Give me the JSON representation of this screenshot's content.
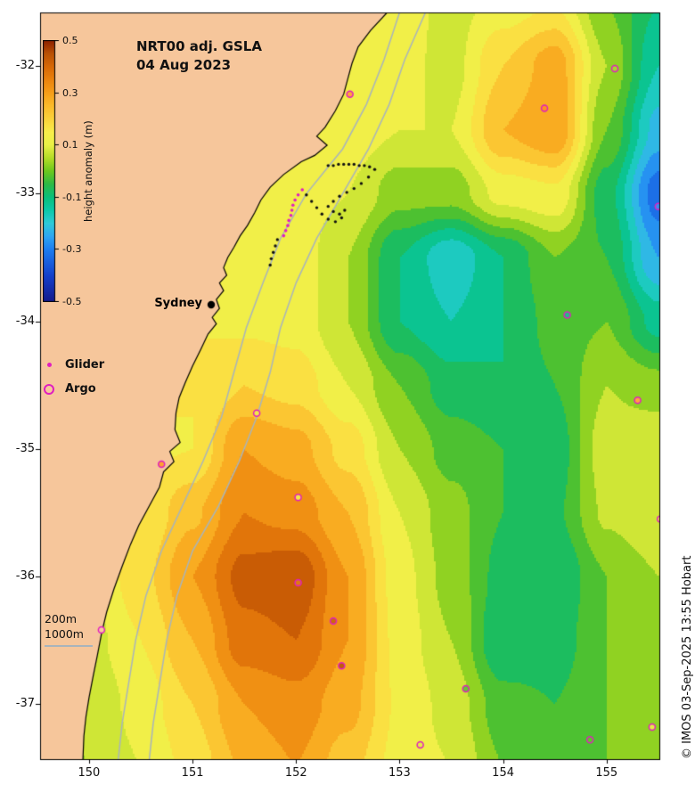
{
  "figure": {
    "title_line1": "NRT00 adj. GSLA",
    "title_line2": "04 Aug 2023",
    "copyright": "© IMOS 03-Sep-2025 13:55 Hobart",
    "land_color": "#f6c69b",
    "coast_color": "#000000",
    "bathy_color": "#a8b4bc",
    "background": "#ffffff"
  },
  "colorbar": {
    "label": "height anomaly (m)",
    "ticks": [
      "0.5",
      "0.3",
      "0.1",
      "-0.1",
      "-0.3",
      "-0.5"
    ],
    "tick_values": [
      0.5,
      0.3,
      0.1,
      -0.1,
      -0.3,
      -0.5
    ],
    "min": -0.5,
    "max": 0.5
  },
  "axes": {
    "lon_tick_labels": [
      "150",
      "151",
      "152",
      "153",
      "154",
      "155"
    ],
    "lon_tick_values": [
      150,
      151,
      152,
      153,
      154,
      155
    ],
    "lat_tick_labels": [
      "-32",
      "-33",
      "-34",
      "-35",
      "-36",
      "-37"
    ],
    "lat_tick_values": [
      -32,
      -33,
      -34,
      -35,
      -36,
      -37
    ],
    "lon_range": [
      149.527,
      155.51
    ],
    "lat_range": [
      -37.432,
      -31.58
    ]
  },
  "legend": {
    "glider_label": "Glider",
    "argo_label": "Argo",
    "marker_color": "#e01ec0"
  },
  "depth_legend": {
    "labels": [
      "200m",
      "1000m"
    ]
  },
  "city": {
    "name": "Sydney",
    "lon": 151.18,
    "lat": -33.87
  },
  "chart_data": {
    "type": "heatmap",
    "title": "NRT00 adj. GSLA 04 Aug 2023",
    "units": "m",
    "value_name": "height anomaly",
    "band_step": 0.05,
    "lons": [
      149.5,
      150,
      150.5,
      151,
      151.5,
      152,
      152.5,
      153,
      153.5,
      154,
      154.5,
      155,
      155.5
    ],
    "lats": [
      -31.5,
      -32,
      -32.5,
      -33,
      -33.5,
      -34,
      -34.5,
      -35,
      -35.5,
      -36,
      -36.5,
      -37,
      -37.5
    ],
    "values": [
      [
        0.13,
        0.13,
        0.13,
        0.13,
        0.13,
        0.13,
        0.14,
        0.13,
        0.08,
        0.12,
        0.15,
        0.0,
        -0.1
      ],
      [
        0.13,
        0.13,
        0.13,
        0.13,
        0.13,
        0.13,
        0.14,
        0.12,
        0.08,
        0.2,
        0.28,
        0.05,
        -0.15
      ],
      [
        0.13,
        0.13,
        0.13,
        0.13,
        0.13,
        0.13,
        0.13,
        0.1,
        0.1,
        0.25,
        0.3,
        0.0,
        -0.22
      ],
      [
        0.13,
        0.13,
        0.13,
        0.13,
        0.13,
        0.13,
        0.1,
        0.02,
        0.02,
        0.12,
        0.14,
        -0.08,
        -0.33
      ],
      [
        0.14,
        0.14,
        0.14,
        0.14,
        0.14,
        0.13,
        0.05,
        -0.1,
        -0.19,
        -0.1,
        0.0,
        -0.05,
        -0.25
      ],
      [
        0.15,
        0.15,
        0.15,
        0.15,
        0.14,
        0.13,
        0.05,
        -0.1,
        -0.15,
        -0.1,
        -0.03,
        0.0,
        -0.12
      ],
      [
        0.16,
        0.16,
        0.16,
        0.15,
        0.2,
        0.18,
        0.1,
        0.0,
        -0.08,
        -0.1,
        -0.05,
        0.05,
        0.02
      ],
      [
        0.14,
        0.14,
        0.14,
        0.15,
        0.3,
        0.27,
        0.18,
        0.05,
        -0.02,
        -0.05,
        -0.08,
        0.08,
        0.1
      ],
      [
        0.12,
        0.12,
        0.15,
        0.24,
        0.35,
        0.33,
        0.25,
        0.1,
        0.02,
        -0.05,
        -0.06,
        0.06,
        0.1
      ],
      [
        0.08,
        0.1,
        0.18,
        0.3,
        0.42,
        0.44,
        0.3,
        0.12,
        0.03,
        -0.07,
        -0.1,
        0.0,
        0.05
      ],
      [
        0.05,
        0.08,
        0.15,
        0.25,
        0.38,
        0.4,
        0.3,
        0.13,
        0.05,
        -0.1,
        -0.08,
        0.0,
        0.03
      ],
      [
        0.03,
        0.06,
        0.12,
        0.2,
        0.3,
        0.33,
        0.27,
        0.14,
        0.08,
        -0.03,
        -0.05,
        0.0,
        0.02
      ],
      [
        0.02,
        0.05,
        0.1,
        0.17,
        0.26,
        0.3,
        0.22,
        0.13,
        0.1,
        0.0,
        -0.02,
        0.0,
        0.03
      ]
    ],
    "colormap": [
      [
        -0.5,
        "#141a8c"
      ],
      [
        -0.4,
        "#1440cc"
      ],
      [
        -0.3,
        "#1e7ef0"
      ],
      [
        -0.25,
        "#2ea6f2"
      ],
      [
        -0.2,
        "#2fcad8"
      ],
      [
        -0.15,
        "#0cc9a9"
      ],
      [
        -0.1,
        "#0abf7a"
      ],
      [
        -0.05,
        "#2eba45"
      ],
      [
        0.0,
        "#6cc81e"
      ],
      [
        0.05,
        "#b4dc26"
      ],
      [
        0.1,
        "#eaf046"
      ],
      [
        0.15,
        "#f8ee4a"
      ],
      [
        0.2,
        "#fbd23a"
      ],
      [
        0.25,
        "#fbba2a"
      ],
      [
        0.3,
        "#f69e18"
      ],
      [
        0.35,
        "#ea820e"
      ],
      [
        0.4,
        "#d86806"
      ],
      [
        0.45,
        "#ba5104"
      ],
      [
        0.5,
        "#8c2000"
      ]
    ],
    "coastline": [
      [
        152.88,
        -31.58
      ],
      [
        152.72,
        -31.72
      ],
      [
        152.6,
        -31.85
      ],
      [
        152.54,
        -31.98
      ],
      [
        152.5,
        -32.1
      ],
      [
        152.46,
        -32.22
      ],
      [
        152.38,
        -32.35
      ],
      [
        152.28,
        -32.48
      ],
      [
        152.2,
        -32.55
      ],
      [
        152.3,
        -32.62
      ],
      [
        152.18,
        -32.7
      ],
      [
        152.05,
        -32.75
      ],
      [
        151.88,
        -32.85
      ],
      [
        151.75,
        -32.95
      ],
      [
        151.66,
        -33.05
      ],
      [
        151.6,
        -33.15
      ],
      [
        151.53,
        -33.25
      ],
      [
        151.46,
        -33.33
      ],
      [
        151.4,
        -33.42
      ],
      [
        151.34,
        -33.5
      ],
      [
        151.3,
        -33.58
      ],
      [
        151.33,
        -33.64
      ],
      [
        151.26,
        -33.7
      ],
      [
        151.3,
        -33.76
      ],
      [
        151.23,
        -33.83
      ],
      [
        151.26,
        -33.9
      ],
      [
        151.19,
        -33.97
      ],
      [
        151.23,
        -34.02
      ],
      [
        151.15,
        -34.1
      ],
      [
        151.08,
        -34.22
      ],
      [
        151.0,
        -34.35
      ],
      [
        150.93,
        -34.48
      ],
      [
        150.87,
        -34.6
      ],
      [
        150.84,
        -34.72
      ],
      [
        150.83,
        -34.85
      ],
      [
        150.88,
        -34.95
      ],
      [
        150.78,
        -35.02
      ],
      [
        150.82,
        -35.1
      ],
      [
        150.72,
        -35.18
      ],
      [
        150.68,
        -35.3
      ],
      [
        150.58,
        -35.45
      ],
      [
        150.48,
        -35.6
      ],
      [
        150.4,
        -35.75
      ],
      [
        150.32,
        -35.92
      ],
      [
        150.24,
        -36.1
      ],
      [
        150.17,
        -36.28
      ],
      [
        150.12,
        -36.45
      ],
      [
        150.08,
        -36.62
      ],
      [
        150.04,
        -36.78
      ],
      [
        150.0,
        -36.95
      ],
      [
        149.97,
        -37.1
      ],
      [
        149.95,
        -37.25
      ],
      [
        149.94,
        -37.45
      ]
    ],
    "bathy_200m": [
      [
        153.0,
        -31.58
      ],
      [
        152.85,
        -31.95
      ],
      [
        152.68,
        -32.3
      ],
      [
        152.45,
        -32.65
      ],
      [
        152.1,
        -33.0
      ],
      [
        151.85,
        -33.35
      ],
      [
        151.68,
        -33.7
      ],
      [
        151.52,
        -34.05
      ],
      [
        151.4,
        -34.4
      ],
      [
        151.28,
        -34.75
      ],
      [
        151.1,
        -35.1
      ],
      [
        150.9,
        -35.45
      ],
      [
        150.7,
        -35.8
      ],
      [
        150.55,
        -36.15
      ],
      [
        150.45,
        -36.5
      ],
      [
        150.38,
        -36.85
      ],
      [
        150.32,
        -37.15
      ],
      [
        150.28,
        -37.45
      ]
    ],
    "bathy_1000m": [
      [
        153.25,
        -31.58
      ],
      [
        153.05,
        -31.95
      ],
      [
        152.9,
        -32.3
      ],
      [
        152.7,
        -32.65
      ],
      [
        152.45,
        -33.0
      ],
      [
        152.2,
        -33.35
      ],
      [
        152.0,
        -33.7
      ],
      [
        151.85,
        -34.05
      ],
      [
        151.75,
        -34.4
      ],
      [
        151.62,
        -34.75
      ],
      [
        151.45,
        -35.1
      ],
      [
        151.25,
        -35.45
      ],
      [
        151.0,
        -35.8
      ],
      [
        150.85,
        -36.15
      ],
      [
        150.75,
        -36.5
      ],
      [
        150.68,
        -36.85
      ],
      [
        150.62,
        -37.15
      ],
      [
        150.58,
        -37.45
      ]
    ],
    "glider_track_black": [
      [
        152.31,
        -32.78
      ],
      [
        152.36,
        -32.78
      ],
      [
        152.41,
        -32.77
      ],
      [
        152.46,
        -32.77
      ],
      [
        152.51,
        -32.77
      ],
      [
        152.56,
        -32.77
      ],
      [
        152.61,
        -32.78
      ],
      [
        152.66,
        -32.78
      ],
      [
        152.71,
        -32.79
      ],
      [
        152.76,
        -32.81
      ],
      [
        152.7,
        -32.87
      ],
      [
        152.63,
        -32.92
      ],
      [
        152.56,
        -32.96
      ],
      [
        152.49,
        -32.99
      ],
      [
        152.42,
        -33.02
      ],
      [
        152.36,
        -33.06
      ],
      [
        152.31,
        -33.1
      ],
      [
        152.36,
        -33.14
      ],
      [
        152.42,
        -33.16
      ],
      [
        152.47,
        -33.13
      ],
      [
        152.44,
        -33.19
      ],
      [
        152.38,
        -33.22
      ],
      [
        152.31,
        -33.2
      ],
      [
        152.25,
        -33.16
      ],
      [
        152.2,
        -33.11
      ],
      [
        152.15,
        -33.06
      ],
      [
        152.1,
        -33.01
      ],
      [
        151.82,
        -33.36
      ],
      [
        151.8,
        -33.41
      ],
      [
        151.78,
        -33.46
      ],
      [
        151.76,
        -33.51
      ],
      [
        151.75,
        -33.56
      ]
    ],
    "glider_track_magenta": [
      [
        152.06,
        -32.97
      ],
      [
        152.02,
        -33.01
      ],
      [
        151.99,
        -33.05
      ],
      [
        151.97,
        -33.09
      ],
      [
        151.96,
        -33.13
      ],
      [
        151.95,
        -33.17
      ],
      [
        151.93,
        -33.21
      ],
      [
        151.92,
        -33.25
      ],
      [
        151.9,
        -33.29
      ],
      [
        151.88,
        -33.33
      ]
    ],
    "argo_floats": [
      {
        "lon": 152.52,
        "lat": -32.22,
        "color": "#ffa73c"
      },
      {
        "lon": 155.08,
        "lat": -32.02,
        "color": "#a8dc28"
      },
      {
        "lon": 154.4,
        "lat": -32.33,
        "color": "#ff9420"
      },
      {
        "lon": 155.5,
        "lat": -33.1,
        "color": "#3c8cf0"
      },
      {
        "lon": 155.55,
        "lat": -33.55,
        "color": "#49a8f2"
      },
      {
        "lon": 154.62,
        "lat": -33.95,
        "color": "#2ab887"
      },
      {
        "lon": 151.62,
        "lat": -34.72,
        "color": "#f2ea48"
      },
      {
        "lon": 155.3,
        "lat": -34.62,
        "color": "#ffa73c"
      },
      {
        "lon": 150.7,
        "lat": -35.12,
        "color": "#ffa032"
      },
      {
        "lon": 152.02,
        "lat": -35.38,
        "color": "#f2ea48"
      },
      {
        "lon": 155.52,
        "lat": -35.55,
        "color": "#eef046"
      },
      {
        "lon": 152.02,
        "lat": -36.05,
        "color": "#de7a12"
      },
      {
        "lon": 152.36,
        "lat": -36.35,
        "color": "#cc6a0c"
      },
      {
        "lon": 152.44,
        "lat": -36.7,
        "color": "#c05e08"
      },
      {
        "lon": 150.12,
        "lat": -36.42,
        "color": "#f8c9a0"
      },
      {
        "lon": 153.64,
        "lat": -36.88,
        "color": "#66c832"
      },
      {
        "lon": 153.2,
        "lat": -37.32,
        "color": "#e6ee44"
      },
      {
        "lon": 154.84,
        "lat": -37.28,
        "color": "#5cc62a"
      },
      {
        "lon": 155.44,
        "lat": -37.18,
        "color": "#e6ee44"
      }
    ]
  }
}
